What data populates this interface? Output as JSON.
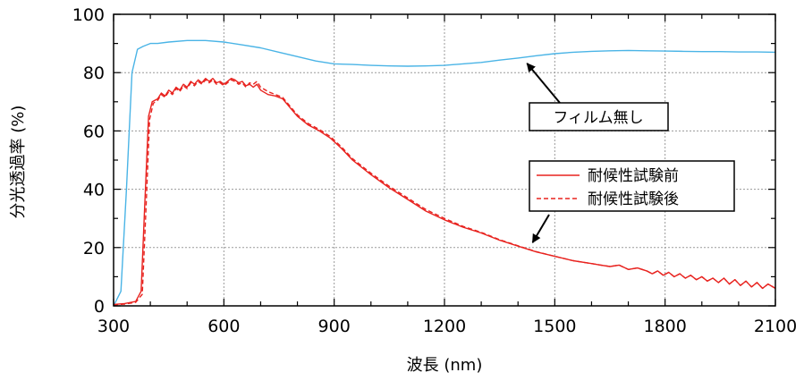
{
  "chart_data": {
    "type": "line",
    "xlabel": "波長 (nm)",
    "ylabel": "分光透過率 (%)",
    "xlim": [
      300,
      2100
    ],
    "ylim": [
      0,
      100
    ],
    "x_ticks": [
      300,
      600,
      900,
      1200,
      1500,
      1800,
      2100
    ],
    "y_ticks": [
      0,
      20,
      40,
      60,
      80,
      100
    ],
    "grid": true,
    "legend_position": "center-right",
    "series": [
      {
        "name": "フィルム無し",
        "color": "#4ab4e6",
        "style": "solid",
        "points": [
          [
            300,
            0
          ],
          [
            320,
            5
          ],
          [
            335,
            40
          ],
          [
            350,
            80
          ],
          [
            365,
            88
          ],
          [
            380,
            89
          ],
          [
            400,
            90
          ],
          [
            420,
            90
          ],
          [
            450,
            90.5
          ],
          [
            500,
            91
          ],
          [
            550,
            91
          ],
          [
            600,
            90.5
          ],
          [
            650,
            89.5
          ],
          [
            700,
            88.5
          ],
          [
            750,
            87
          ],
          [
            800,
            85.5
          ],
          [
            850,
            84
          ],
          [
            900,
            83
          ],
          [
            950,
            82.8
          ],
          [
            1000,
            82.5
          ],
          [
            1050,
            82.3
          ],
          [
            1100,
            82.2
          ],
          [
            1150,
            82.3
          ],
          [
            1200,
            82.5
          ],
          [
            1250,
            83
          ],
          [
            1300,
            83.5
          ],
          [
            1350,
            84.3
          ],
          [
            1400,
            85
          ],
          [
            1450,
            85.8
          ],
          [
            1500,
            86.5
          ],
          [
            1550,
            87
          ],
          [
            1600,
            87.3
          ],
          [
            1650,
            87.5
          ],
          [
            1700,
            87.6
          ],
          [
            1750,
            87.5
          ],
          [
            1800,
            87.4
          ],
          [
            1850,
            87.3
          ],
          [
            1900,
            87.2
          ],
          [
            1950,
            87.2
          ],
          [
            2000,
            87.1
          ],
          [
            2050,
            87.1
          ],
          [
            2100,
            87
          ]
        ]
      },
      {
        "name": "耐候性試験前",
        "color": "#e8231f",
        "style": "solid",
        "points": [
          [
            300,
            0.5
          ],
          [
            330,
            0.8
          ],
          [
            360,
            1.5
          ],
          [
            375,
            5
          ],
          [
            385,
            35
          ],
          [
            395,
            65
          ],
          [
            405,
            70
          ],
          [
            420,
            71
          ],
          [
            430,
            73
          ],
          [
            440,
            72
          ],
          [
            450,
            74
          ],
          [
            460,
            73
          ],
          [
            470,
            75
          ],
          [
            480,
            74
          ],
          [
            490,
            76
          ],
          [
            500,
            75
          ],
          [
            510,
            77
          ],
          [
            520,
            76
          ],
          [
            530,
            77.5
          ],
          [
            540,
            76.5
          ],
          [
            550,
            78
          ],
          [
            560,
            77
          ],
          [
            570,
            78
          ],
          [
            580,
            76.5
          ],
          [
            590,
            77
          ],
          [
            600,
            76
          ],
          [
            610,
            77
          ],
          [
            620,
            78
          ],
          [
            630,
            77.5
          ],
          [
            640,
            76.5
          ],
          [
            650,
            77
          ],
          [
            660,
            75.5
          ],
          [
            670,
            76
          ],
          [
            680,
            75
          ],
          [
            690,
            76
          ],
          [
            700,
            74
          ],
          [
            720,
            72.5
          ],
          [
            740,
            72
          ],
          [
            760,
            71
          ],
          [
            780,
            68
          ],
          [
            800,
            65
          ],
          [
            830,
            62
          ],
          [
            860,
            60
          ],
          [
            890,
            57.5
          ],
          [
            920,
            54
          ],
          [
            950,
            50
          ],
          [
            1000,
            45
          ],
          [
            1050,
            40.5
          ],
          [
            1100,
            36.5
          ],
          [
            1150,
            32.5
          ],
          [
            1200,
            29.5
          ],
          [
            1250,
            27
          ],
          [
            1300,
            25
          ],
          [
            1350,
            22.5
          ],
          [
            1400,
            20.5
          ],
          [
            1450,
            18.5
          ],
          [
            1500,
            17
          ],
          [
            1550,
            15.5
          ],
          [
            1600,
            14.5
          ],
          [
            1625,
            14
          ],
          [
            1650,
            13.5
          ],
          [
            1675,
            14
          ],
          [
            1700,
            12.5
          ],
          [
            1725,
            13
          ],
          [
            1750,
            12
          ],
          [
            1765,
            11
          ],
          [
            1780,
            12
          ],
          [
            1795,
            10.5
          ],
          [
            1810,
            11.5
          ],
          [
            1825,
            10
          ],
          [
            1840,
            11
          ],
          [
            1855,
            9.5
          ],
          [
            1870,
            10.5
          ],
          [
            1885,
            9
          ],
          [
            1900,
            10
          ],
          [
            1915,
            8.5
          ],
          [
            1930,
            9.5
          ],
          [
            1945,
            8
          ],
          [
            1960,
            9.5
          ],
          [
            1975,
            7.5
          ],
          [
            1990,
            9
          ],
          [
            2005,
            7
          ],
          [
            2020,
            8.5
          ],
          [
            2035,
            6.5
          ],
          [
            2050,
            8
          ],
          [
            2065,
            6
          ],
          [
            2080,
            7.5
          ],
          [
            2100,
            6
          ]
        ]
      },
      {
        "name": "耐候性試験後",
        "color": "#e8231f",
        "style": "dashed",
        "points": [
          [
            300,
            0.3
          ],
          [
            330,
            0.6
          ],
          [
            360,
            1.2
          ],
          [
            378,
            4
          ],
          [
            388,
            33
          ],
          [
            398,
            64
          ],
          [
            408,
            69.5
          ],
          [
            420,
            70.5
          ],
          [
            430,
            72.5
          ],
          [
            440,
            71.5
          ],
          [
            450,
            73.5
          ],
          [
            460,
            72.5
          ],
          [
            470,
            74.5
          ],
          [
            480,
            73.5
          ],
          [
            490,
            75.5
          ],
          [
            500,
            74.5
          ],
          [
            510,
            76.5
          ],
          [
            520,
            75.5
          ],
          [
            530,
            77
          ],
          [
            540,
            76
          ],
          [
            550,
            77.5
          ],
          [
            560,
            76.5
          ],
          [
            570,
            77.5
          ],
          [
            580,
            76
          ],
          [
            590,
            76.5
          ],
          [
            600,
            75.5
          ],
          [
            610,
            76.5
          ],
          [
            620,
            77.5
          ],
          [
            630,
            77
          ],
          [
            640,
            76
          ],
          [
            650,
            76.5
          ],
          [
            660,
            75
          ],
          [
            670,
            76.5
          ],
          [
            680,
            76
          ],
          [
            690,
            77
          ],
          [
            700,
            75
          ],
          [
            720,
            73.5
          ],
          [
            740,
            72.5
          ],
          [
            760,
            71.5
          ],
          [
            780,
            68.5
          ],
          [
            800,
            65.5
          ],
          [
            830,
            62.5
          ],
          [
            860,
            60.5
          ],
          [
            890,
            58
          ],
          [
            920,
            54.5
          ],
          [
            950,
            50.5
          ],
          [
            1000,
            45.5
          ],
          [
            1050,
            41
          ],
          [
            1100,
            37
          ],
          [
            1150,
            33
          ],
          [
            1200,
            30
          ],
          [
            1250,
            27.3
          ],
          [
            1300,
            25.2
          ],
          [
            1350,
            22.7
          ],
          [
            1400,
            20.6
          ],
          [
            1450,
            18.6
          ],
          [
            1500,
            17
          ],
          [
            1550,
            15.5
          ],
          [
            1600,
            14.5
          ],
          [
            1625,
            14
          ],
          [
            1650,
            13.5
          ],
          [
            1675,
            14
          ],
          [
            1700,
            12.5
          ],
          [
            1725,
            13
          ],
          [
            1750,
            12
          ],
          [
            1765,
            11
          ],
          [
            1780,
            12
          ],
          [
            1795,
            10.5
          ],
          [
            1810,
            11.5
          ],
          [
            1825,
            10
          ],
          [
            1840,
            11
          ],
          [
            1855,
            9.5
          ],
          [
            1870,
            10.5
          ],
          [
            1885,
            9
          ],
          [
            1900,
            10
          ],
          [
            1915,
            8.5
          ],
          [
            1930,
            9.5
          ],
          [
            1945,
            8
          ],
          [
            1960,
            9.5
          ],
          [
            1975,
            7.5
          ],
          [
            1990,
            9
          ],
          [
            2005,
            7
          ],
          [
            2020,
            8.5
          ],
          [
            2035,
            6.5
          ],
          [
            2050,
            8
          ],
          [
            2065,
            6
          ],
          [
            2080,
            7.5
          ],
          [
            2100,
            6
          ]
        ]
      }
    ],
    "annotations": [
      {
        "text": "フィルム無し",
        "arrow_to": [
          1410,
          85
        ]
      },
      {
        "text": "",
        "arrow_to": [
          1430,
          20.5
        ]
      }
    ]
  }
}
